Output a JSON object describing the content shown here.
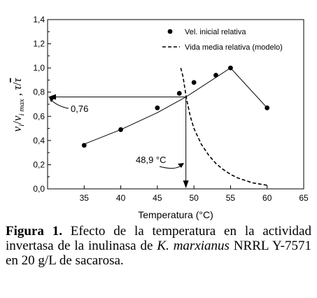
{
  "chart_data": {
    "type": "scatter",
    "xlabel": "Temperatura (°C)",
    "ylabel": {
      "v": "v",
      "i": "i",
      "slash": "/",
      "imax": "i max",
      "sep": " , ",
      "tau": "τ",
      "slash2": "/",
      "taubar": "τ"
    },
    "xlim": [
      30,
      65
    ],
    "ylim": [
      0.0,
      1.4
    ],
    "x_ticks": [
      "35",
      "40",
      "45",
      "50",
      "55",
      "60",
      "65"
    ],
    "y_ticks": [
      "0,0",
      "0,2",
      "0,4",
      "0,6",
      "0,8",
      "1,0",
      "1,2",
      "1,4"
    ],
    "x_tick_values": [
      35,
      40,
      45,
      50,
      55,
      60,
      65
    ],
    "y_tick_values": [
      0,
      0.2,
      0.4,
      0.6,
      0.8,
      1.0,
      1.2,
      1.4
    ],
    "legend_position": "top-right",
    "series": [
      {
        "name": "Vel. inicial relativa",
        "style": "markers",
        "x": [
          35,
          40,
          45,
          48,
          50,
          53,
          55,
          60
        ],
        "y": [
          0.36,
          0.49,
          0.67,
          0.79,
          0.88,
          0.94,
          1.0,
          0.67
        ]
      },
      {
        "name": "Vida media relativa (modelo)",
        "style": "dashed",
        "x": [
          48.2,
          48.5,
          49.0,
          49.5,
          50.0,
          51.0,
          52.0,
          53.0,
          54.0,
          55.0,
          56.0,
          57.0,
          58.0,
          59.0,
          60.0
        ],
        "y": [
          1.0,
          0.93,
          0.74,
          0.6,
          0.5,
          0.37,
          0.28,
          0.21,
          0.16,
          0.12,
          0.09,
          0.07,
          0.05,
          0.04,
          0.03
        ]
      }
    ],
    "fit_line": {
      "x": [
        35,
        40,
        45,
        48.9,
        55,
        60
      ],
      "y": [
        0.37,
        0.49,
        0.63,
        0.76,
        1.0,
        0.67
      ]
    },
    "annotations": {
      "y_value_label": "0,76",
      "y_value": 0.76,
      "x_value_label": "48,9 °C",
      "x_value": 48.9
    }
  },
  "caption": {
    "label": "Figura 1.",
    "text_before": " Efecto de la temperatura en la actividad invertasa de la inulinasa de ",
    "species": "K. marxianus",
    "text_after": " NRRL Y-7571 en 20 g/L de sacarosa."
  }
}
